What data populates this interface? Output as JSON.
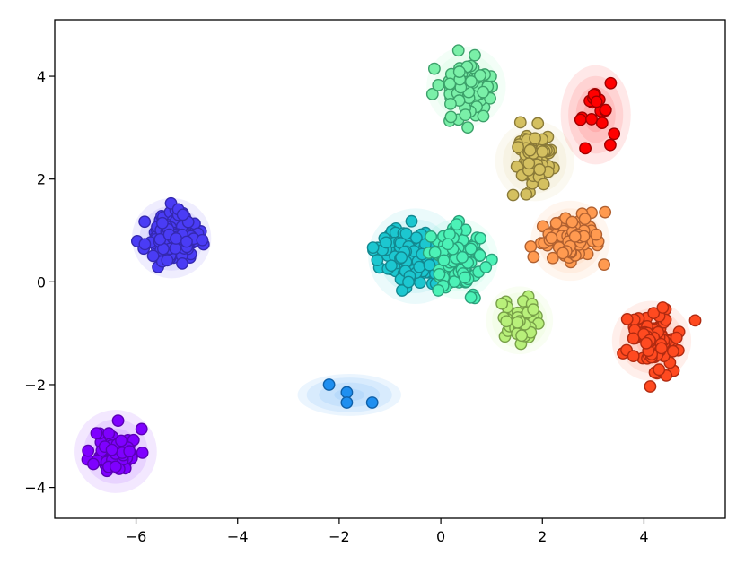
{
  "chart_data": {
    "type": "scatter",
    "title": "",
    "xlabel": "",
    "ylabel": "",
    "xlim": [
      -7.6,
      5.6
    ],
    "ylim": [
      -4.6,
      5.1
    ],
    "xticks": [
      -6,
      -4,
      -2,
      0,
      2,
      4
    ],
    "yticks": [
      -4,
      -2,
      0,
      2,
      4
    ],
    "xtick_labels": [
      "−6",
      "−4",
      "−2",
      "0",
      "2",
      "4"
    ],
    "ytick_labels": [
      "−4",
      "−2",
      "0",
      "2",
      "4"
    ],
    "grid": false,
    "legend": "none",
    "series": [
      {
        "color": "#7f00ff",
        "edge": "#5a00b4",
        "center": [
          -6.4,
          -3.3
        ],
        "spread": [
          0.22,
          0.22
        ],
        "n": 70,
        "seed": 11,
        "gauss_radii": [
          0.45,
          0.75,
          1.05,
          1.35
        ]
      },
      {
        "color": "#4a3cf5",
        "edge": "#3428b0",
        "center": [
          -5.3,
          0.85
        ],
        "spread": [
          0.25,
          0.22
        ],
        "n": 120,
        "seed": 23,
        "gauss_radii": [
          0.5,
          0.8,
          1.05,
          1.3
        ]
      },
      {
        "color": "#1f8ff0",
        "edge": "#1060a8",
        "points": [
          [
            -2.2,
            -2.0
          ],
          [
            -1.85,
            -2.15
          ],
          [
            -1.85,
            -2.35
          ],
          [
            -1.35,
            -2.35
          ]
        ],
        "gauss_center": [
          -1.8,
          -2.2
        ],
        "gauss_radii": [
          0.5,
          1.0,
          1.4,
          1.7
        ],
        "gauss_ratio": 0.4
      },
      {
        "color": "#1cc7d0",
        "edge": "#128890",
        "center": [
          -0.5,
          0.5
        ],
        "spread": [
          0.35,
          0.28
        ],
        "n": 130,
        "seed": 37,
        "gauss_radii": [
          0.5,
          0.85,
          1.2,
          1.55
        ]
      },
      {
        "color": "#4cf2b7",
        "edge": "#2aa07a",
        "center": [
          0.35,
          0.45
        ],
        "spread": [
          0.25,
          0.3
        ],
        "n": 110,
        "seed": 41,
        "gauss_radii": [
          0.5,
          0.8,
          1.05,
          1.3
        ]
      },
      {
        "color": "#7af0a8",
        "edge": "#3ca06a",
        "center": [
          0.5,
          3.8
        ],
        "spread": [
          0.25,
          0.28
        ],
        "n": 100,
        "seed": 53,
        "gauss_radii": [
          0.5,
          0.8,
          1.05,
          1.3
        ]
      },
      {
        "color": "#b8f07a",
        "edge": "#78a048",
        "center": [
          1.55,
          -0.75
        ],
        "spread": [
          0.2,
          0.25
        ],
        "n": 55,
        "seed": 61,
        "gauss_radii": [
          0.4,
          0.65,
          0.9,
          1.1
        ]
      },
      {
        "color": "#d4c060",
        "edge": "#8a7a38",
        "center": [
          1.85,
          2.35
        ],
        "spread": [
          0.2,
          0.32
        ],
        "n": 80,
        "seed": 71,
        "gauss_radii": [
          0.5,
          0.8,
          1.05,
          1.3
        ]
      },
      {
        "color": "#ff9a50",
        "edge": "#b06030",
        "center": [
          2.55,
          0.8
        ],
        "spread": [
          0.28,
          0.22
        ],
        "n": 100,
        "seed": 83,
        "gauss_radii": [
          0.5,
          0.8,
          1.05,
          1.3
        ]
      },
      {
        "color": "#ff4a20",
        "edge": "#b02a10",
        "center": [
          4.15,
          -1.15
        ],
        "spread": [
          0.28,
          0.3
        ],
        "n": 110,
        "seed": 97,
        "gauss_radii": [
          0.5,
          0.8,
          1.05,
          1.3
        ]
      },
      {
        "color": "#ff0000",
        "edge": "#a00000",
        "center": [
          3.05,
          3.25
        ],
        "spread": [
          0.18,
          0.3
        ],
        "n": 18,
        "seed": 101,
        "gauss_radii": [
          0.4,
          0.65,
          0.9,
          1.15
        ],
        "gauss_ratio": 1.4
      }
    ]
  }
}
